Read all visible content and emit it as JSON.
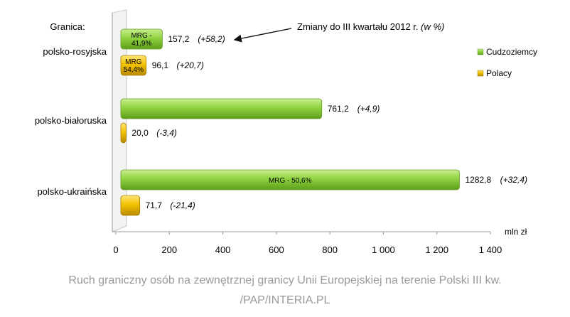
{
  "chart_data": {
    "type": "bar",
    "orientation": "horizontal",
    "categories_heading": "Granica:",
    "categories": [
      "polsko-rosyjska",
      "polsko-białoruska",
      "polsko-ukraińska"
    ],
    "series": [
      {
        "name": "Cudzoziemcy",
        "color": "#8ccf3a",
        "values": [
          157.2,
          761.2,
          1282.8
        ],
        "value_labels": [
          "157,2",
          "761,2",
          "1282,8"
        ],
        "change_labels": [
          "(+58,2)",
          "(+4,9)",
          "(+32,4)"
        ],
        "inner_labels": [
          "MRG -\n41,9%",
          "",
          "MRG - 50,6%"
        ]
      },
      {
        "name": "Polacy",
        "color": "#f2c200",
        "values": [
          96.1,
          20.0,
          71.7
        ],
        "value_labels": [
          "96,1",
          "20,0",
          "71,7"
        ],
        "change_labels": [
          "(+20,7)",
          "(-3,4)",
          "(-21,4)"
        ],
        "inner_labels": [
          "MRG\n54,4%",
          "",
          ""
        ]
      }
    ],
    "x_ticks": [
      "0",
      "200",
      "400",
      "600",
      "800",
      "1 000",
      "1 200",
      "1 400"
    ],
    "xlim": [
      0,
      1400
    ],
    "unit_label": "mln zł",
    "annotation": "Zmiany do III kwartału 2012 r. (w %)",
    "legend_position": "right",
    "grid": false
  },
  "caption": {
    "line1": "Ruch graniczny osób na zewnętrznej granicy Unii Europejskiej na terenie Polski III kw.",
    "line2": "/PAP/INTERIA.PL"
  }
}
